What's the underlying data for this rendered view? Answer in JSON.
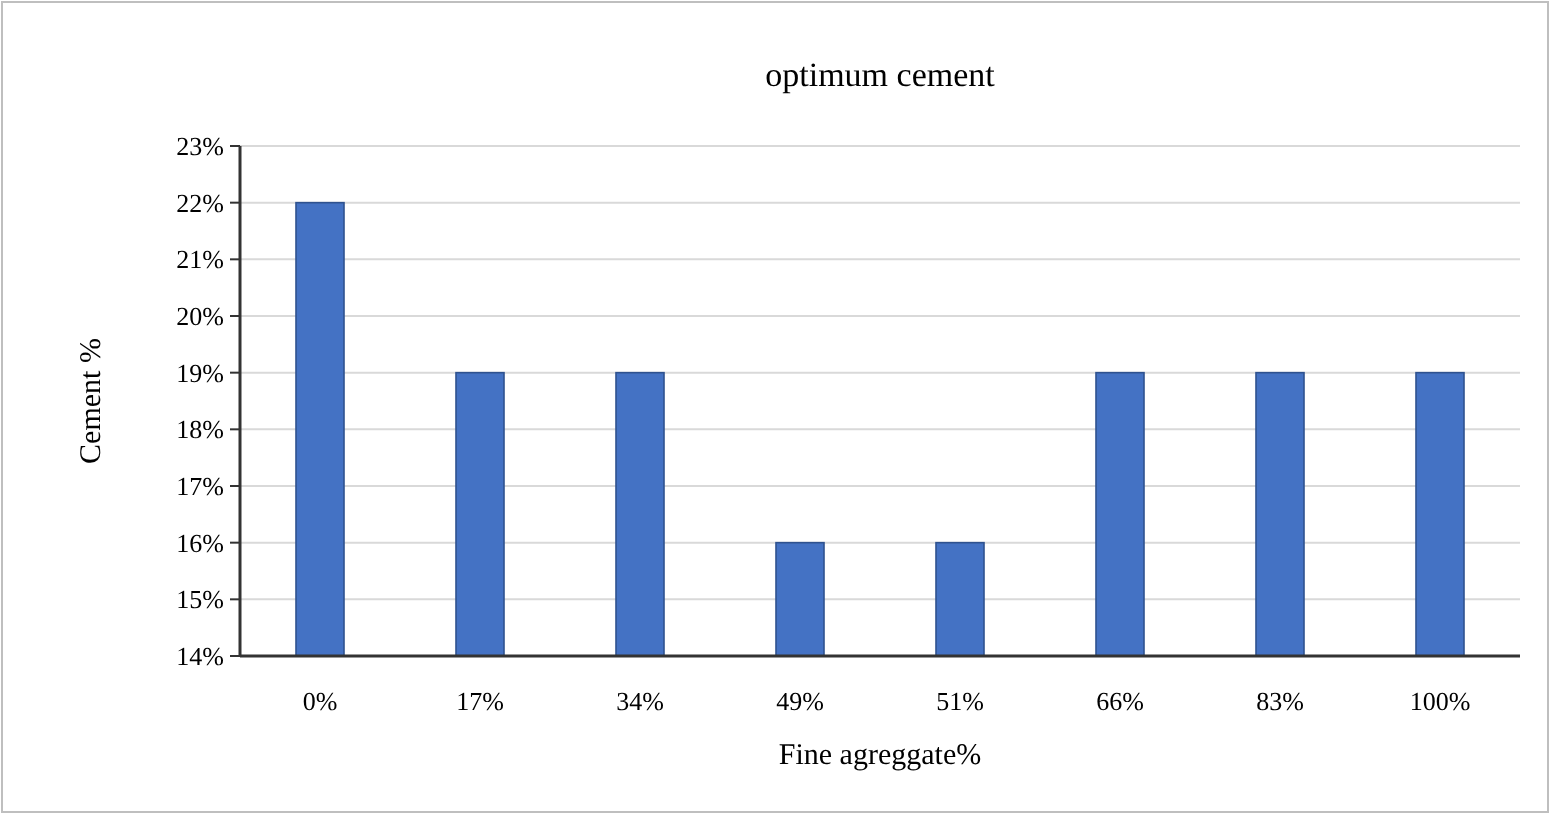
{
  "chart_data": {
    "type": "bar",
    "title": "optimum cement",
    "xlabel": "Fine agreggate%",
    "ylabel": "Cement %",
    "categories": [
      "0%",
      "17%",
      "34%",
      "49%",
      "51%",
      "66%",
      "83%",
      "100%"
    ],
    "values": [
      22,
      19,
      19,
      16,
      16,
      19,
      19,
      19
    ],
    "color": "#4472c4",
    "ylim": [
      14,
      23
    ],
    "yticks": [
      {
        "value": 14,
        "label": "14%"
      },
      {
        "value": 15,
        "label": "15%"
      },
      {
        "value": 16,
        "label": "16%"
      },
      {
        "value": 17,
        "label": "17%"
      },
      {
        "value": 18,
        "label": "18%"
      },
      {
        "value": 19,
        "label": "19%"
      },
      {
        "value": 20,
        "label": "20%"
      },
      {
        "value": 21,
        "label": "21%"
      },
      {
        "value": 22,
        "label": "22%"
      },
      {
        "value": 23,
        "label": "23%"
      }
    ],
    "grid": "y"
  }
}
